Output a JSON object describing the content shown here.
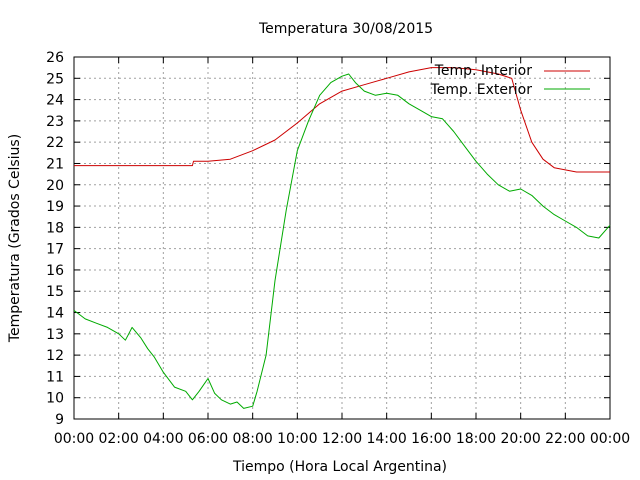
{
  "chart_data": {
    "type": "line",
    "title": "Temperatura 30/08/2015",
    "xlabel": "Tiempo (Hora Local Argentina)",
    "ylabel": "Temperatura (Grados Celsius)",
    "xlim": [
      0,
      24
    ],
    "ylim": [
      9,
      26
    ],
    "x_ticks": [
      "00:00",
      "02:00",
      "04:00",
      "06:00",
      "08:00",
      "10:00",
      "12:00",
      "14:00",
      "16:00",
      "18:00",
      "20:00",
      "22:00",
      "00:00"
    ],
    "y_ticks": [
      "9",
      "10",
      "11",
      "12",
      "13",
      "14",
      "15",
      "16",
      "17",
      "18",
      "19",
      "20",
      "21",
      "22",
      "23",
      "24",
      "25",
      "26"
    ],
    "grid": true,
    "legend_position": "top-right",
    "series": [
      {
        "name": "Temp. Interior",
        "color": "#cc0000",
        "x": [
          0,
          2,
          4,
          5.3,
          5.35,
          6,
          7,
          8,
          9,
          10,
          11,
          12,
          13,
          14,
          15,
          16,
          17,
          18,
          19,
          19.6,
          20,
          20.5,
          21,
          21.5,
          22,
          22.5,
          23,
          23.5,
          24
        ],
        "values": [
          20.9,
          20.9,
          20.9,
          20.9,
          21.1,
          21.1,
          21.2,
          21.6,
          22.1,
          22.9,
          23.8,
          24.4,
          24.7,
          25.0,
          25.3,
          25.5,
          25.5,
          25.4,
          25.2,
          25.0,
          23.5,
          22.0,
          21.2,
          20.8,
          20.7,
          20.6,
          20.6,
          20.6,
          20.6
        ]
      },
      {
        "name": "Temp. Exterior",
        "color": "#00aa00",
        "x": [
          0,
          0.5,
          1,
          1.5,
          2,
          2.3,
          2.6,
          3,
          3.3,
          3.6,
          4,
          4.5,
          5,
          5.3,
          5.6,
          6,
          6.3,
          6.6,
          7,
          7.3,
          7.6,
          8,
          8.2,
          8.6,
          9,
          9.5,
          10,
          10.5,
          11,
          11.5,
          12,
          12.3,
          12.6,
          13,
          13.5,
          14,
          14.5,
          15,
          15.5,
          16,
          16.5,
          17,
          17.5,
          18,
          18.5,
          19,
          19.5,
          20,
          20.5,
          21,
          21.5,
          22,
          22.5,
          23,
          23.5,
          24
        ],
        "values": [
          14.1,
          13.7,
          13.5,
          13.3,
          13.0,
          12.7,
          13.3,
          12.8,
          12.3,
          11.9,
          11.2,
          10.5,
          10.3,
          9.9,
          10.3,
          10.9,
          10.2,
          9.9,
          9.7,
          9.8,
          9.5,
          9.6,
          10.3,
          12.0,
          15.5,
          18.8,
          21.6,
          23.0,
          24.2,
          24.8,
          25.1,
          25.2,
          24.8,
          24.4,
          24.2,
          24.3,
          24.2,
          23.8,
          23.5,
          23.2,
          23.1,
          22.5,
          21.8,
          21.1,
          20.5,
          20.0,
          19.7,
          19.8,
          19.5,
          19.0,
          18.6,
          18.3,
          18.0,
          17.6,
          17.5,
          18.1
        ]
      }
    ]
  }
}
